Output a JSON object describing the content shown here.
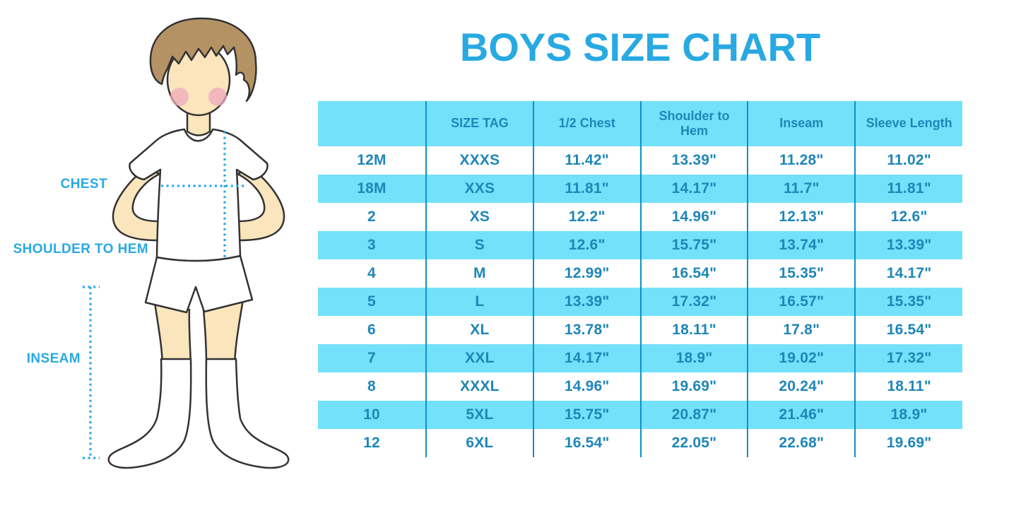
{
  "title": "BOYS SIZE CHART",
  "diagram": {
    "labels": {
      "chest": "CHEST",
      "shoulder_to_hem": "SHOULDER TO HEM",
      "inseam": "INSEAM"
    }
  },
  "colors": {
    "title_blue": "#29A9E2",
    "label_blue": "#29A9E2",
    "dotted": "#29A9E2",
    "table_text": "#1E86B8",
    "row_cyan": "#74E1FA",
    "divider": "#0E90C9",
    "skin": "#FAE5BC",
    "hair": "#B59264",
    "cheek": "#EFAABE",
    "outline": "#333333"
  },
  "chart_data": {
    "type": "table",
    "title": "BOYS SIZE CHART",
    "columns": [
      "",
      "SIZE TAG",
      "1/2 Chest",
      "Shoulder to Hem",
      "Inseam",
      "Sleeve Length"
    ],
    "rows": [
      [
        "12M",
        "XXXS",
        "11.42\"",
        "13.39\"",
        "11.28\"",
        "11.02\""
      ],
      [
        "18M",
        "XXS",
        "11.81\"",
        "14.17\"",
        "11.7\"",
        "11.81\""
      ],
      [
        "2",
        "XS",
        "12.2\"",
        "14.96\"",
        "12.13\"",
        "12.6\""
      ],
      [
        "3",
        "S",
        "12.6\"",
        "15.75\"",
        "13.74\"",
        "13.39\""
      ],
      [
        "4",
        "M",
        "12.99\"",
        "16.54\"",
        "15.35\"",
        "14.17\""
      ],
      [
        "5",
        "L",
        "13.39\"",
        "17.32\"",
        "16.57\"",
        "15.35\""
      ],
      [
        "6",
        "XL",
        "13.78\"",
        "18.11\"",
        "17.8\"",
        "16.54\""
      ],
      [
        "7",
        "XXL",
        "14.17\"",
        "18.9\"",
        "19.02\"",
        "17.32\""
      ],
      [
        "8",
        "XXXL",
        "14.96\"",
        "19.69\"",
        "20.24\"",
        "18.11\""
      ],
      [
        "10",
        "5XL",
        "15.75\"",
        "20.87\"",
        "21.46\"",
        "18.9\""
      ],
      [
        "12",
        "6XL",
        "16.54\"",
        "22.05\"",
        "22.68\"",
        "19.69\""
      ]
    ],
    "row_striping": "odd rows cyan, even rows white, header cyan",
    "legend_position": "none",
    "grid": "vertical dividers only"
  }
}
